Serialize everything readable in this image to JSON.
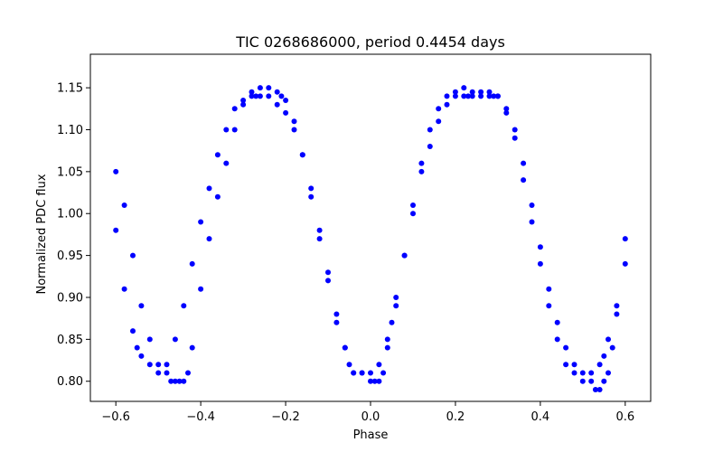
{
  "chart_data": {
    "type": "scatter",
    "title": "TIC 0268686000, period 0.4454 days",
    "xlabel": "Phase",
    "ylabel": "Normalized PDC flux",
    "xlim": [
      -0.66,
      0.66
    ],
    "ylim": [
      0.776,
      1.19
    ],
    "xticks": [
      -0.6,
      -0.4,
      -0.2,
      0.0,
      0.2,
      0.4,
      0.6
    ],
    "xtick_labels": [
      "−0.6",
      "−0.4",
      "−0.2",
      "0.0",
      "0.2",
      "0.4",
      "0.6"
    ],
    "yticks": [
      0.8,
      0.85,
      0.9,
      0.95,
      1.0,
      1.05,
      1.1,
      1.15
    ],
    "ytick_labels": [
      "0.80",
      "0.85",
      "0.90",
      "0.95",
      "1.00",
      "1.05",
      "1.10",
      "1.15"
    ],
    "grid": false,
    "legend": "none",
    "marker_color": "#0000ff",
    "series": [
      {
        "x": [
          -0.6,
          -0.58,
          -0.56,
          -0.54,
          -0.52,
          -0.5,
          -0.48,
          -0.47,
          -0.46,
          -0.45,
          -0.44,
          -0.43,
          -0.42,
          -0.4,
          -0.38,
          -0.36,
          -0.34,
          -0.32,
          -0.3,
          -0.28,
          -0.26,
          -0.24,
          -0.22,
          -0.21,
          -0.2,
          -0.18,
          -0.16,
          -0.14,
          -0.12,
          -0.1,
          -0.08,
          -0.06,
          -0.04,
          -0.02,
          0.0,
          0.01,
          0.02,
          0.03,
          0.04,
          0.05,
          0.06,
          0.08,
          0.1,
          0.12,
          0.14,
          0.16,
          0.18,
          0.2,
          0.22,
          0.24,
          0.26,
          0.28,
          0.29,
          0.3,
          0.32,
          0.34,
          0.36,
          0.38,
          0.4,
          0.42,
          0.44,
          0.46,
          0.48,
          0.5,
          0.52,
          0.53,
          0.54,
          0.55,
          0.56,
          0.57,
          0.58,
          0.6
        ],
        "y": [
          1.05,
          1.01,
          0.95,
          0.89,
          0.85,
          0.82,
          0.81,
          0.8,
          0.8,
          0.8,
          0.8,
          0.81,
          0.84,
          0.91,
          0.97,
          1.02,
          1.06,
          1.1,
          1.13,
          1.145,
          1.15,
          1.15,
          1.145,
          1.14,
          1.135,
          1.11,
          1.07,
          1.02,
          0.97,
          0.92,
          0.87,
          0.84,
          0.81,
          0.81,
          0.8,
          0.8,
          0.8,
          0.81,
          0.84,
          0.87,
          0.9,
          0.95,
          1.01,
          1.06,
          1.1,
          1.125,
          1.14,
          1.145,
          1.15,
          1.145,
          1.14,
          1.14,
          1.14,
          1.14,
          1.12,
          1.09,
          1.04,
          0.99,
          0.94,
          0.89,
          0.85,
          0.82,
          0.81,
          0.8,
          0.8,
          0.79,
          0.79,
          0.8,
          0.81,
          0.84,
          0.89,
          0.97
        ]
      },
      {
        "x": [
          -0.6,
          -0.58,
          -0.56,
          -0.55,
          -0.54,
          -0.52,
          -0.5,
          -0.48,
          -0.46,
          -0.44,
          -0.42,
          -0.4,
          -0.38,
          -0.36,
          -0.34,
          -0.32,
          -0.3,
          -0.28,
          -0.27,
          -0.26,
          -0.24,
          -0.22,
          -0.2,
          -0.18,
          -0.16,
          -0.14,
          -0.12,
          -0.1,
          -0.08,
          -0.06,
          -0.05,
          -0.04,
          -0.02,
          0.0,
          0.02,
          0.04,
          0.06,
          0.08,
          0.1,
          0.12,
          0.14,
          0.16,
          0.18,
          0.2,
          0.22,
          0.23,
          0.24,
          0.26,
          0.28,
          0.3,
          0.32,
          0.34,
          0.36,
          0.38,
          0.4,
          0.42,
          0.44,
          0.46,
          0.48,
          0.5,
          0.52,
          0.54,
          0.55,
          0.56,
          0.58,
          0.6
        ],
        "y": [
          0.98,
          0.91,
          0.86,
          0.84,
          0.83,
          0.82,
          0.81,
          0.82,
          0.85,
          0.89,
          0.94,
          0.99,
          1.03,
          1.07,
          1.1,
          1.125,
          1.135,
          1.14,
          1.14,
          1.14,
          1.14,
          1.13,
          1.12,
          1.1,
          1.07,
          1.03,
          0.98,
          0.93,
          0.88,
          0.84,
          0.82,
          0.81,
          0.81,
          0.81,
          0.82,
          0.85,
          0.89,
          0.95,
          1.0,
          1.05,
          1.08,
          1.11,
          1.13,
          1.14,
          1.14,
          1.14,
          1.14,
          1.145,
          1.145,
          1.14,
          1.125,
          1.1,
          1.06,
          1.01,
          0.96,
          0.91,
          0.87,
          0.84,
          0.82,
          0.81,
          0.81,
          0.82,
          0.83,
          0.85,
          0.88,
          0.94
        ]
      }
    ]
  }
}
